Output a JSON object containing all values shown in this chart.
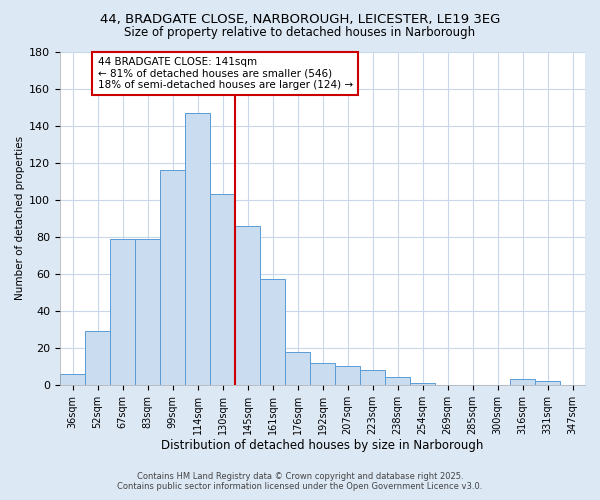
{
  "title": "44, BRADGATE CLOSE, NARBOROUGH, LEICESTER, LE19 3EG",
  "subtitle": "Size of property relative to detached houses in Narborough",
  "xlabel": "Distribution of detached houses by size in Narborough",
  "ylabel": "Number of detached properties",
  "bar_labels": [
    "36sqm",
    "52sqm",
    "67sqm",
    "83sqm",
    "99sqm",
    "114sqm",
    "130sqm",
    "145sqm",
    "161sqm",
    "176sqm",
    "192sqm",
    "207sqm",
    "223sqm",
    "238sqm",
    "254sqm",
    "269sqm",
    "285sqm",
    "300sqm",
    "316sqm",
    "331sqm",
    "347sqm"
  ],
  "bar_values": [
    6,
    29,
    79,
    79,
    116,
    147,
    103,
    86,
    57,
    18,
    12,
    10,
    8,
    4,
    1,
    0,
    0,
    0,
    3,
    2,
    0
  ],
  "bar_color": "#c9dcf0",
  "bar_edge_color": "#5b9bd5",
  "vline_x": 6.5,
  "vline_color": "#cc0000",
  "annotation_text_line1": "44 BRADGATE CLOSE: 141sqm",
  "annotation_text_line2": "← 81% of detached houses are smaller (546)",
  "annotation_text_line3": "18% of semi-detached houses are larger (124) →",
  "annotation_box_color": "#cc0000",
  "ylim": [
    0,
    180
  ],
  "yticks": [
    0,
    20,
    40,
    60,
    80,
    100,
    120,
    140,
    160,
    180
  ],
  "fig_background_color": "#dde8f5",
  "ax_background_color": "#ffffff",
  "grid_color": "#c8d8ea",
  "footer_line1": "Contains HM Land Registry data © Crown copyright and database right 2025.",
  "footer_line2": "Contains public sector information licensed under the Open Government Licence v3.0.",
  "title_fontsize": 9.5,
  "subtitle_fontsize": 8.5,
  "xlabel_fontsize": 8.5,
  "ylabel_fontsize": 7.5,
  "tick_fontsize": 7,
  "annotation_fontsize": 7.5,
  "footer_fontsize": 6
}
